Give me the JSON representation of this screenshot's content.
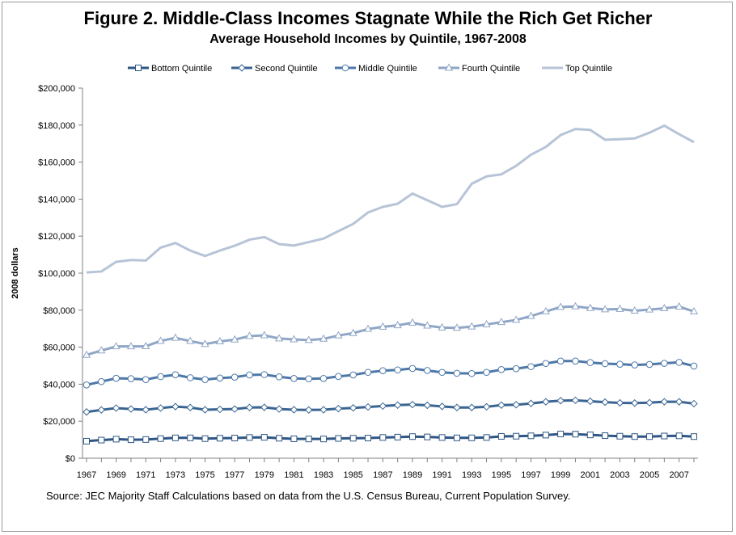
{
  "title": "Figure 2. Middle-Class Incomes Stagnate While the Rich Get Richer",
  "subtitle": "Average Household Incomes by Quintile, 1967-2008",
  "source": "Source: JEC Majority Staff Calculations based on data from the U.S. Census Bureau, Current Population Survey.",
  "chart_data": {
    "type": "line",
    "title": "Figure 2. Middle-Class Incomes Stagnate While the Rich Get Richer",
    "subtitle": "Average Household Incomes by Quintile, 1967-2008",
    "xlabel": "",
    "ylabel": "2008 dollars",
    "ylim": [
      0,
      200000
    ],
    "yticks": [
      0,
      20000,
      40000,
      60000,
      80000,
      100000,
      120000,
      140000,
      160000,
      180000,
      200000
    ],
    "ytick_labels": [
      "$0",
      "$20,000",
      "$40,000",
      "$60,000",
      "$80,000",
      "$100,000",
      "$120,000",
      "$140,000",
      "$160,000",
      "$180,000",
      "$200,000"
    ],
    "xtick_labels": [
      "1967",
      "1969",
      "1971",
      "1973",
      "1975",
      "1977",
      "1979",
      "1981",
      "1983",
      "1985",
      "1987",
      "1989",
      "1991",
      "1993",
      "1995",
      "1997",
      "1999",
      "2001",
      "2003",
      "2005",
      "2007"
    ],
    "grid": false,
    "legend_position": "top",
    "x": [
      1967,
      1968,
      1969,
      1970,
      1971,
      1972,
      1973,
      1974,
      1975,
      1976,
      1977,
      1978,
      1979,
      1980,
      1981,
      1982,
      1983,
      1984,
      1985,
      1986,
      1987,
      1988,
      1989,
      1990,
      1991,
      1992,
      1993,
      1994,
      1995,
      1996,
      1997,
      1998,
      1999,
      2000,
      2001,
      2002,
      2003,
      2004,
      2005,
      2006,
      2007,
      2008
    ],
    "series": [
      {
        "name": "Bottom Quintile",
        "marker": "square",
        "color": "#2f5684",
        "values": [
          9200,
          9800,
          10300,
          10000,
          10100,
          10600,
          11000,
          11000,
          10600,
          10800,
          10900,
          11200,
          11300,
          10800,
          10500,
          10400,
          10400,
          10700,
          10800,
          10900,
          11200,
          11400,
          11700,
          11500,
          11200,
          11000,
          11000,
          11200,
          11800,
          11900,
          12100,
          12500,
          13100,
          13000,
          12600,
          12200,
          11900,
          11700,
          11700,
          12000,
          12100,
          11700
        ]
      },
      {
        "name": "Second Quintile",
        "marker": "diamond",
        "color": "#3a6593",
        "values": [
          25000,
          26100,
          27100,
          26600,
          26200,
          27100,
          27900,
          27400,
          26200,
          26400,
          26600,
          27400,
          27500,
          26600,
          26200,
          26100,
          26200,
          26800,
          27200,
          27700,
          28200,
          28700,
          29000,
          28600,
          28000,
          27400,
          27400,
          27800,
          28700,
          28900,
          29600,
          30500,
          31100,
          31300,
          30800,
          30300,
          29900,
          29800,
          30000,
          30500,
          30500,
          29500
        ]
      },
      {
        "name": "Middle Quintile",
        "marker": "circle",
        "color": "#4d78a8",
        "values": [
          39600,
          41400,
          43200,
          43000,
          42500,
          44100,
          45100,
          43500,
          42500,
          43300,
          43800,
          45000,
          45200,
          44000,
          43100,
          42900,
          43100,
          44200,
          45000,
          46400,
          47300,
          47700,
          48500,
          47400,
          46400,
          45900,
          45800,
          46400,
          47900,
          48400,
          49500,
          51200,
          52500,
          52500,
          51700,
          51100,
          50800,
          50400,
          50700,
          51300,
          51800,
          49800
        ]
      },
      {
        "name": "Fourth Quintile",
        "marker": "triangle",
        "color": "#8fa6c6",
        "values": [
          55800,
          58200,
          60400,
          60400,
          60500,
          63400,
          65000,
          63300,
          61700,
          63100,
          64100,
          66000,
          66400,
          64700,
          64200,
          63800,
          64500,
          66300,
          67600,
          69800,
          71000,
          71800,
          73200,
          71600,
          70600,
          70400,
          71100,
          72300,
          73500,
          74700,
          76800,
          79300,
          81700,
          82000,
          81100,
          80400,
          80600,
          79700,
          80300,
          81000,
          81900,
          79300
        ]
      },
      {
        "name": "Top Quintile",
        "marker": "none",
        "color": "#b7c4d7",
        "values": [
          100400,
          100900,
          106100,
          107100,
          106800,
          113800,
          116300,
          112200,
          109300,
          112200,
          114800,
          118100,
          119500,
          115700,
          114900,
          116800,
          118700,
          122700,
          126600,
          132800,
          135800,
          137500,
          143000,
          139400,
          135800,
          137300,
          148300,
          152300,
          153400,
          158000,
          164000,
          168200,
          174600,
          177900,
          177400,
          172100,
          172400,
          172800,
          175900,
          179700,
          175100,
          170800
        ]
      }
    ]
  }
}
